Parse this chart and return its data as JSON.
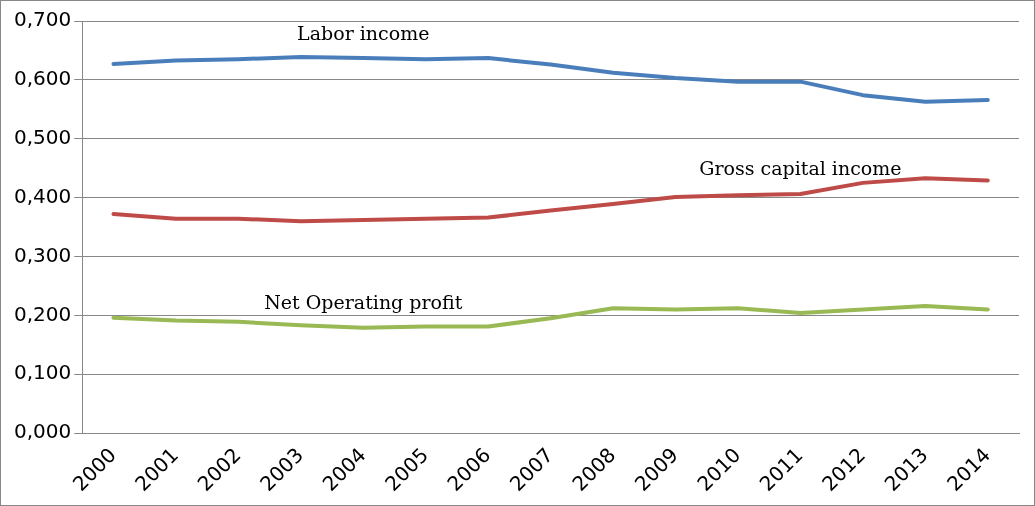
{
  "chart_data": {
    "type": "line",
    "categories": [
      "2000",
      "2001",
      "2002",
      "2003",
      "2004",
      "2005",
      "2006",
      "2007",
      "2008",
      "2009",
      "2010",
      "2011",
      "2012",
      "2013",
      "2014"
    ],
    "series": [
      {
        "name": "Labor income",
        "color": "#4a7ebb",
        "values": [
          0.627,
          0.633,
          0.635,
          0.639,
          0.637,
          0.635,
          0.637,
          0.626,
          0.612,
          0.603,
          0.597,
          0.597,
          0.574,
          0.563,
          0.566
        ]
      },
      {
        "name": "Gross capital income",
        "color": "#be4b48",
        "values": [
          0.372,
          0.364,
          0.364,
          0.36,
          0.362,
          0.364,
          0.366,
          0.378,
          0.389,
          0.401,
          0.404,
          0.406,
          0.425,
          0.433,
          0.429
        ]
      },
      {
        "name": "Net Operating profit",
        "color": "#98b954",
        "values": [
          0.196,
          0.191,
          0.189,
          0.183,
          0.179,
          0.181,
          0.181,
          0.195,
          0.212,
          0.21,
          0.212,
          0.204,
          0.21,
          0.216,
          0.21
        ]
      }
    ],
    "ylim": [
      0,
      0.7
    ],
    "yticks": [
      {
        "value": 0,
        "label": "0,000"
      },
      {
        "value": 0.1,
        "label": "0,100"
      },
      {
        "value": 0.2,
        "label": "0,200"
      },
      {
        "value": 0.3,
        "label": "0,300"
      },
      {
        "value": 0.4,
        "label": "0,400"
      },
      {
        "value": 0.5,
        "label": "0,500"
      },
      {
        "value": 0.6,
        "label": "0,600"
      },
      {
        "value": 0.7,
        "label": "0,700"
      }
    ],
    "grid": "y",
    "legend": false,
    "marker": "none",
    "line_style": "solid"
  }
}
